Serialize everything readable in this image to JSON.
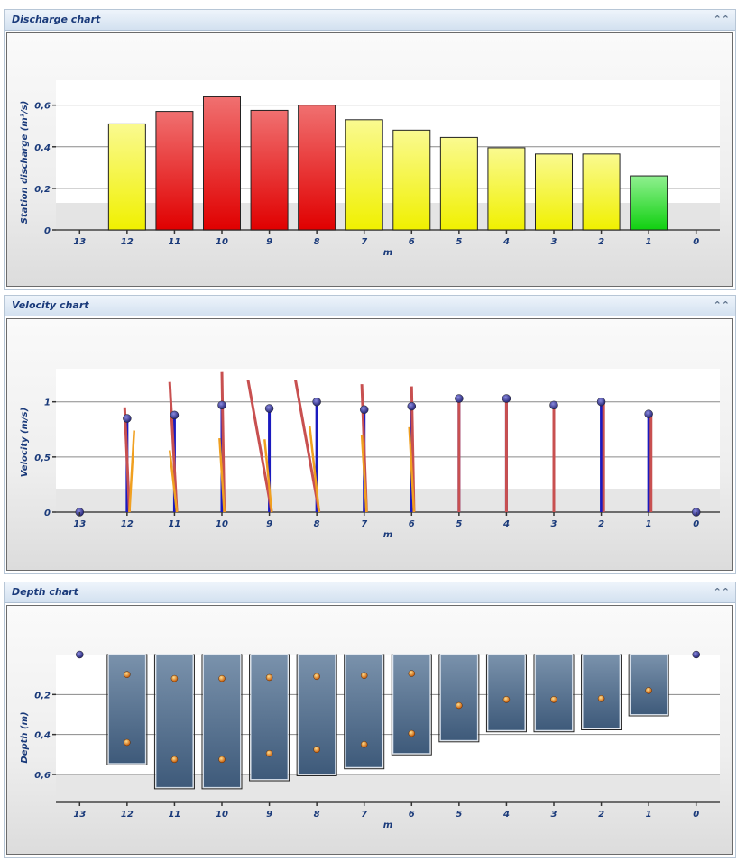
{
  "panels": {
    "discharge": {
      "title": "Discharge chart"
    },
    "velocity": {
      "title": "Velocity chart"
    },
    "depth": {
      "title": "Depth chart"
    }
  },
  "icons": {
    "collapse": "double-chevron-up-icon"
  },
  "colors": {
    "yellow_bar": "#f2f21a",
    "red_bar": "#e82020",
    "green_bar": "#33dd33",
    "blue_line": "#1a1abf",
    "red_line": "#c85050",
    "orange_line": "#f0a020",
    "depth_bar": "#4d6a8a",
    "point_blue": "#3a3a9a",
    "text_blue": "#1a3a7a"
  },
  "chart_data": [
    {
      "type": "bar",
      "title": "Discharge chart",
      "xlabel": "m",
      "ylabel": "Station discharge (m³/s)",
      "categories": [
        "13",
        "12",
        "11",
        "10",
        "9",
        "8",
        "7",
        "6",
        "5",
        "4",
        "3",
        "2",
        "1",
        "0"
      ],
      "values": [
        0,
        0.51,
        0.57,
        0.64,
        0.575,
        0.6,
        0.53,
        0.48,
        0.445,
        0.395,
        0.365,
        0.365,
        0.26,
        0
      ],
      "bar_colors": [
        "",
        "yellow",
        "red",
        "red",
        "red",
        "red",
        "yellow",
        "yellow",
        "yellow",
        "yellow",
        "yellow",
        "yellow",
        "green",
        ""
      ],
      "yticks": [
        "0",
        "0,2",
        "0,4",
        "0,6"
      ],
      "ylim": [
        0,
        0.72
      ],
      "grid": true
    },
    {
      "type": "line",
      "title": "Velocity chart",
      "xlabel": "m",
      "ylabel": "Velocity (m/s)",
      "categories": [
        "13",
        "12",
        "11",
        "10",
        "9",
        "8",
        "7",
        "6",
        "5",
        "4",
        "3",
        "2",
        "1",
        "0"
      ],
      "mean_velocity": [
        0,
        0.85,
        0.88,
        0.97,
        0.94,
        1.0,
        0.93,
        0.96,
        1.03,
        1.03,
        0.97,
        1.0,
        0.89,
        0
      ],
      "red_vectors": [
        null,
        {
          "x0": 12.05,
          "y0": 0.95,
          "x1": 11.95,
          "y1": 0
        },
        {
          "x0": 11.1,
          "y0": 1.18,
          "x1": 10.95,
          "y1": 0
        },
        {
          "x0": 10.0,
          "y0": 1.27,
          "x1": 9.95,
          "y1": 0
        },
        {
          "x0": 9.45,
          "y0": 1.2,
          "x1": 8.95,
          "y1": 0
        },
        {
          "x0": 8.45,
          "y0": 1.2,
          "x1": 7.95,
          "y1": 0
        },
        {
          "x0": 7.05,
          "y0": 1.16,
          "x1": 6.95,
          "y1": 0
        },
        {
          "x0": 6.0,
          "y0": 1.14,
          "x1": 5.95,
          "y1": 0
        },
        {
          "x0": 5.0,
          "y0": 1.05,
          "x1": 5.0,
          "y1": 0
        },
        {
          "x0": 4.0,
          "y0": 1.03,
          "x1": 4.0,
          "y1": 0
        },
        {
          "x0": 3.0,
          "y0": 0.98,
          "x1": 3.0,
          "y1": 0
        },
        {
          "x0": 1.95,
          "y0": 0.99,
          "x1": 1.95,
          "y1": 0
        },
        {
          "x0": 0.95,
          "y0": 0.88,
          "x1": 0.95,
          "y1": 0
        },
        null
      ],
      "orange_vectors": [
        null,
        {
          "x0": 11.85,
          "y0": 0.74,
          "x1": 11.95,
          "y1": 0
        },
        {
          "x0": 11.1,
          "y0": 0.56,
          "x1": 10.95,
          "y1": 0
        },
        {
          "x0": 10.05,
          "y0": 0.67,
          "x1": 9.95,
          "y1": 0
        },
        {
          "x0": 9.1,
          "y0": 0.66,
          "x1": 8.95,
          "y1": 0
        },
        {
          "x0": 8.15,
          "y0": 0.78,
          "x1": 7.95,
          "y1": 0
        },
        {
          "x0": 7.05,
          "y0": 0.7,
          "x1": 6.95,
          "y1": 0
        },
        {
          "x0": 6.05,
          "y0": 0.77,
          "x1": 5.95,
          "y1": 0
        },
        null,
        null,
        null,
        null,
        null,
        null
      ],
      "yticks": [
        "0",
        "0,5",
        "1"
      ],
      "ylim": [
        0,
        1.3
      ],
      "grid": true
    },
    {
      "type": "bar",
      "title": "Depth chart",
      "xlabel": "m",
      "ylabel": "Depth (m)",
      "categories": [
        "13",
        "12",
        "11",
        "10",
        "9",
        "8",
        "7",
        "6",
        "5",
        "4",
        "3",
        "2",
        "1",
        "0"
      ],
      "depth": [
        0,
        0.545,
        0.665,
        0.665,
        0.625,
        0.6,
        0.565,
        0.495,
        0.43,
        0.38,
        0.38,
        0.37,
        0.3,
        0
      ],
      "upper_point": [
        0,
        0.1,
        0.12,
        0.12,
        0.115,
        0.11,
        0.105,
        0.095,
        0.255,
        0.225,
        0.225,
        0.22,
        0.18,
        0
      ],
      "lower_point": [
        null,
        0.44,
        0.525,
        0.525,
        0.495,
        0.475,
        0.45,
        0.395,
        null,
        null,
        null,
        null,
        null,
        null
      ],
      "yticks": [
        "0,2",
        "0,4",
        "0,6"
      ],
      "ylim": [
        0,
        0.74
      ],
      "y_inverted": true,
      "grid": true
    }
  ]
}
